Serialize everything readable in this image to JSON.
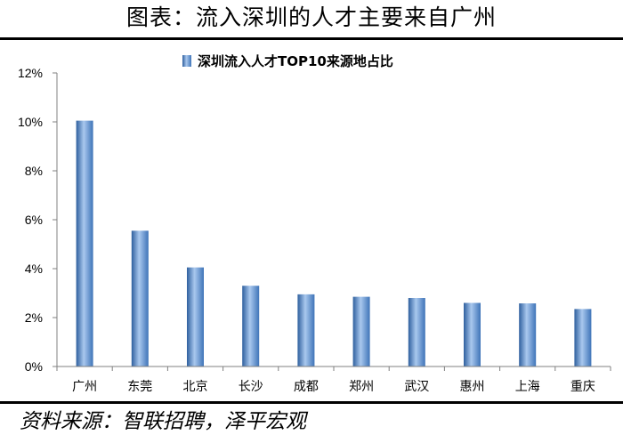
{
  "figure_title": "图表：流入深圳的人才主要来自广州",
  "source_note": "资料来源：智联招聘，泽平宏观",
  "colors": {
    "bar_dark": "#2e5f9e",
    "bar_mid": "#6d9ed8",
    "bar_light": "#a9c8ee",
    "axis": "#808080",
    "rule": "#000000"
  },
  "chart_data": {
    "type": "bar",
    "categories": [
      "广州",
      "东莞",
      "北京",
      "长沙",
      "成都",
      "郑州",
      "武汉",
      "惠州",
      "上海",
      "重庆"
    ],
    "series": [
      {
        "name": "深圳流入人才TOP10来源地占比",
        "values": [
          10.05,
          5.55,
          4.05,
          3.3,
          2.95,
          2.85,
          2.8,
          2.6,
          2.58,
          2.35
        ]
      }
    ],
    "ylim": [
      0,
      12
    ],
    "yticks": [
      0,
      2,
      4,
      6,
      8,
      10,
      12
    ],
    "ytick_labels": [
      "0%",
      "2%",
      "4%",
      "6%",
      "8%",
      "10%",
      "12%"
    ],
    "legend_position": "top-center",
    "grid": false
  }
}
